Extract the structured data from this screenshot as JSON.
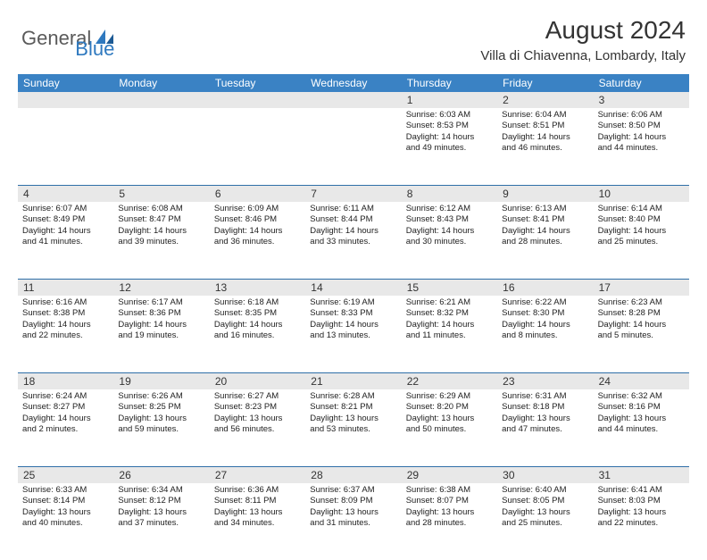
{
  "logo": {
    "text1": "General",
    "text2": "Blue"
  },
  "title": "August 2024",
  "location": "Villa di Chiavenna, Lombardy, Italy",
  "colors": {
    "header_bg": "#3a82c4",
    "header_text": "#ffffff",
    "daynum_bg": "#e8e8e8",
    "row_border": "#2f6fa8",
    "logo_gray": "#5a5a5a",
    "logo_blue": "#2f79bf",
    "text": "#222222",
    "bg": "#ffffff"
  },
  "typography": {
    "month_title_size": 28,
    "location_size": 15,
    "dow_size": 12,
    "daynum_size": 12,
    "body_size": 9.5
  },
  "days_of_week": [
    "Sunday",
    "Monday",
    "Tuesday",
    "Wednesday",
    "Thursday",
    "Friday",
    "Saturday"
  ],
  "weeks": [
    [
      null,
      null,
      null,
      null,
      {
        "n": "1",
        "sr": "Sunrise: 6:03 AM",
        "ss": "Sunset: 8:53 PM",
        "d1": "Daylight: 14 hours",
        "d2": "and 49 minutes."
      },
      {
        "n": "2",
        "sr": "Sunrise: 6:04 AM",
        "ss": "Sunset: 8:51 PM",
        "d1": "Daylight: 14 hours",
        "d2": "and 46 minutes."
      },
      {
        "n": "3",
        "sr": "Sunrise: 6:06 AM",
        "ss": "Sunset: 8:50 PM",
        "d1": "Daylight: 14 hours",
        "d2": "and 44 minutes."
      }
    ],
    [
      {
        "n": "4",
        "sr": "Sunrise: 6:07 AM",
        "ss": "Sunset: 8:49 PM",
        "d1": "Daylight: 14 hours",
        "d2": "and 41 minutes."
      },
      {
        "n": "5",
        "sr": "Sunrise: 6:08 AM",
        "ss": "Sunset: 8:47 PM",
        "d1": "Daylight: 14 hours",
        "d2": "and 39 minutes."
      },
      {
        "n": "6",
        "sr": "Sunrise: 6:09 AM",
        "ss": "Sunset: 8:46 PM",
        "d1": "Daylight: 14 hours",
        "d2": "and 36 minutes."
      },
      {
        "n": "7",
        "sr": "Sunrise: 6:11 AM",
        "ss": "Sunset: 8:44 PM",
        "d1": "Daylight: 14 hours",
        "d2": "and 33 minutes."
      },
      {
        "n": "8",
        "sr": "Sunrise: 6:12 AM",
        "ss": "Sunset: 8:43 PM",
        "d1": "Daylight: 14 hours",
        "d2": "and 30 minutes."
      },
      {
        "n": "9",
        "sr": "Sunrise: 6:13 AM",
        "ss": "Sunset: 8:41 PM",
        "d1": "Daylight: 14 hours",
        "d2": "and 28 minutes."
      },
      {
        "n": "10",
        "sr": "Sunrise: 6:14 AM",
        "ss": "Sunset: 8:40 PM",
        "d1": "Daylight: 14 hours",
        "d2": "and 25 minutes."
      }
    ],
    [
      {
        "n": "11",
        "sr": "Sunrise: 6:16 AM",
        "ss": "Sunset: 8:38 PM",
        "d1": "Daylight: 14 hours",
        "d2": "and 22 minutes."
      },
      {
        "n": "12",
        "sr": "Sunrise: 6:17 AM",
        "ss": "Sunset: 8:36 PM",
        "d1": "Daylight: 14 hours",
        "d2": "and 19 minutes."
      },
      {
        "n": "13",
        "sr": "Sunrise: 6:18 AM",
        "ss": "Sunset: 8:35 PM",
        "d1": "Daylight: 14 hours",
        "d2": "and 16 minutes."
      },
      {
        "n": "14",
        "sr": "Sunrise: 6:19 AM",
        "ss": "Sunset: 8:33 PM",
        "d1": "Daylight: 14 hours",
        "d2": "and 13 minutes."
      },
      {
        "n": "15",
        "sr": "Sunrise: 6:21 AM",
        "ss": "Sunset: 8:32 PM",
        "d1": "Daylight: 14 hours",
        "d2": "and 11 minutes."
      },
      {
        "n": "16",
        "sr": "Sunrise: 6:22 AM",
        "ss": "Sunset: 8:30 PM",
        "d1": "Daylight: 14 hours",
        "d2": "and 8 minutes."
      },
      {
        "n": "17",
        "sr": "Sunrise: 6:23 AM",
        "ss": "Sunset: 8:28 PM",
        "d1": "Daylight: 14 hours",
        "d2": "and 5 minutes."
      }
    ],
    [
      {
        "n": "18",
        "sr": "Sunrise: 6:24 AM",
        "ss": "Sunset: 8:27 PM",
        "d1": "Daylight: 14 hours",
        "d2": "and 2 minutes."
      },
      {
        "n": "19",
        "sr": "Sunrise: 6:26 AM",
        "ss": "Sunset: 8:25 PM",
        "d1": "Daylight: 13 hours",
        "d2": "and 59 minutes."
      },
      {
        "n": "20",
        "sr": "Sunrise: 6:27 AM",
        "ss": "Sunset: 8:23 PM",
        "d1": "Daylight: 13 hours",
        "d2": "and 56 minutes."
      },
      {
        "n": "21",
        "sr": "Sunrise: 6:28 AM",
        "ss": "Sunset: 8:21 PM",
        "d1": "Daylight: 13 hours",
        "d2": "and 53 minutes."
      },
      {
        "n": "22",
        "sr": "Sunrise: 6:29 AM",
        "ss": "Sunset: 8:20 PM",
        "d1": "Daylight: 13 hours",
        "d2": "and 50 minutes."
      },
      {
        "n": "23",
        "sr": "Sunrise: 6:31 AM",
        "ss": "Sunset: 8:18 PM",
        "d1": "Daylight: 13 hours",
        "d2": "and 47 minutes."
      },
      {
        "n": "24",
        "sr": "Sunrise: 6:32 AM",
        "ss": "Sunset: 8:16 PM",
        "d1": "Daylight: 13 hours",
        "d2": "and 44 minutes."
      }
    ],
    [
      {
        "n": "25",
        "sr": "Sunrise: 6:33 AM",
        "ss": "Sunset: 8:14 PM",
        "d1": "Daylight: 13 hours",
        "d2": "and 40 minutes."
      },
      {
        "n": "26",
        "sr": "Sunrise: 6:34 AM",
        "ss": "Sunset: 8:12 PM",
        "d1": "Daylight: 13 hours",
        "d2": "and 37 minutes."
      },
      {
        "n": "27",
        "sr": "Sunrise: 6:36 AM",
        "ss": "Sunset: 8:11 PM",
        "d1": "Daylight: 13 hours",
        "d2": "and 34 minutes."
      },
      {
        "n": "28",
        "sr": "Sunrise: 6:37 AM",
        "ss": "Sunset: 8:09 PM",
        "d1": "Daylight: 13 hours",
        "d2": "and 31 minutes."
      },
      {
        "n": "29",
        "sr": "Sunrise: 6:38 AM",
        "ss": "Sunset: 8:07 PM",
        "d1": "Daylight: 13 hours",
        "d2": "and 28 minutes."
      },
      {
        "n": "30",
        "sr": "Sunrise: 6:40 AM",
        "ss": "Sunset: 8:05 PM",
        "d1": "Daylight: 13 hours",
        "d2": "and 25 minutes."
      },
      {
        "n": "31",
        "sr": "Sunrise: 6:41 AM",
        "ss": "Sunset: 8:03 PM",
        "d1": "Daylight: 13 hours",
        "d2": "and 22 minutes."
      }
    ]
  ]
}
